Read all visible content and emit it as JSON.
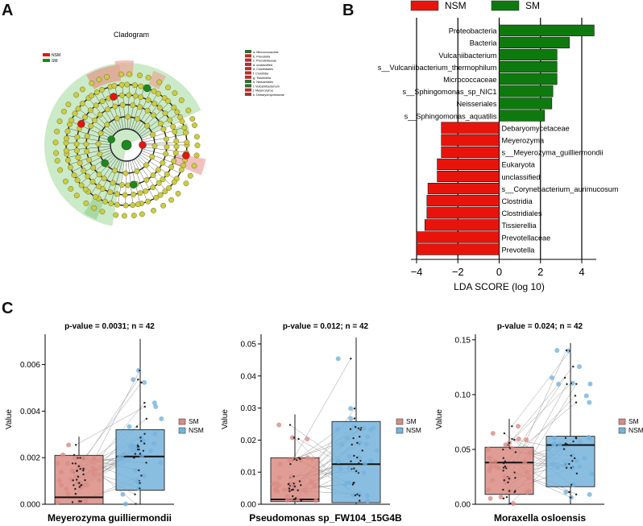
{
  "panel_letters": {
    "a": "A",
    "b": "B",
    "c": "C"
  },
  "cladogram": {
    "title": "Cladogram",
    "legend": [
      {
        "name": "NSM",
        "color": "#e8140c"
      },
      {
        "name": "SM",
        "color": "#1a8a1a"
      }
    ],
    "key_entries": [
      {
        "label": "a: Micrococcaceae",
        "color": "#2f6a2f"
      },
      {
        "label": "b: Prevotella",
        "color": "#b03030"
      },
      {
        "label": "c: Prevotellaceae",
        "color": "#b03030"
      },
      {
        "label": "d: unclassified",
        "color": "#b03030"
      },
      {
        "label": "e: Clostridiales",
        "color": "#b03030"
      },
      {
        "label": "f: Clostridia",
        "color": "#b03030"
      },
      {
        "label": "g: Tissierellia",
        "color": "#b03030"
      },
      {
        "label": "h: Neisseriales",
        "color": "#2f6a2f"
      },
      {
        "label": "i: Vulcaniibacterium",
        "color": "#2f6a2f"
      },
      {
        "label": "j: Meyerozyma",
        "color": "#b03030"
      },
      {
        "label": "k: Debaryomycetaceae",
        "color": "#b03030"
      }
    ]
  },
  "chart_data": [
    {
      "type": "bar",
      "orientation": "horizontal",
      "title": "",
      "xlabel": "LDA SCORE (log 10)",
      "ylabel": "",
      "xlim": [
        -4.5,
        4.8
      ],
      "xticks": [
        -4,
        -2,
        0,
        2,
        4
      ],
      "xtick_labels": [
        "−4",
        "−2",
        "0",
        "2",
        "4"
      ],
      "legend": [
        {
          "name": "NSM",
          "color": "#e8140c"
        },
        {
          "name": "SM",
          "color": "#0e7a0e"
        }
      ],
      "bars": [
        {
          "label": "Proteobacteria",
          "value": 4.6,
          "group": "SM"
        },
        {
          "label": "Bacteria",
          "value": 3.4,
          "group": "SM"
        },
        {
          "label": "Vulcaniibacterium",
          "value": 2.8,
          "group": "SM"
        },
        {
          "label": "s__Vulcaniibacterium_thermophilum",
          "value": 2.8,
          "group": "SM"
        },
        {
          "label": "Micrococcaceae",
          "value": 2.8,
          "group": "SM"
        },
        {
          "label": "s__Sphingomonas_sp_NIC1",
          "value": 2.6,
          "group": "SM"
        },
        {
          "label": "Neisseriales",
          "value": 2.55,
          "group": "SM"
        },
        {
          "label": "s__Sphingomonas_aquatilis",
          "value": 2.2,
          "group": "SM"
        },
        {
          "label": "Debaryomycetaceae",
          "value": -2.8,
          "group": "NSM"
        },
        {
          "label": "Meyerozyma",
          "value": -2.8,
          "group": "NSM"
        },
        {
          "label": "s__Meyerozyma_guilliermondii",
          "value": -2.8,
          "group": "NSM"
        },
        {
          "label": "Eukaryota",
          "value": -3.0,
          "group": "NSM"
        },
        {
          "label": "unclassified",
          "value": -3.0,
          "group": "NSM"
        },
        {
          "label": "s__Corynebacterium_aurimucosum",
          "value": -3.45,
          "group": "NSM"
        },
        {
          "label": "Clostridia",
          "value": -3.5,
          "group": "NSM"
        },
        {
          "label": "Clostridiales",
          "value": -3.5,
          "group": "NSM"
        },
        {
          "label": "Tissierellia",
          "value": -3.6,
          "group": "NSM"
        },
        {
          "label": "Prevotellaceae",
          "value": -4.0,
          "group": "NSM"
        },
        {
          "label": "Prevotella",
          "value": -4.0,
          "group": "NSM"
        }
      ]
    },
    {
      "type": "box",
      "title": "p-value = 0.0031; n = 42",
      "xlabel": "Meyerozyma guilliermondii",
      "ylabel": "Value",
      "ylim": [
        0,
        0.0073
      ],
      "yticks": [
        0,
        0.002,
        0.004,
        0.006
      ],
      "ytick_labels": [
        "0.000",
        "0.002",
        "0.004",
        "0.006"
      ],
      "legend": [
        {
          "name": "SM",
          "color": "#d98c84"
        },
        {
          "name": "NSM",
          "color": "#76b3dc"
        }
      ],
      "boxes": [
        {
          "group": "SM",
          "q1": 0.0,
          "median": 0.0003,
          "q3": 0.0021,
          "whisker_low": 0.0,
          "whisker_high": 0.0029
        },
        {
          "group": "NSM",
          "q1": 0.0006,
          "median": 0.00205,
          "q3": 0.0032,
          "whisker_low": 0.0,
          "whisker_high": 0.0071
        }
      ]
    },
    {
      "type": "box",
      "title": "p-value = 0.012; n = 42",
      "xlabel": "Pseudomonas sp_FW104_15G4B",
      "ylabel": "Value",
      "ylim": [
        0,
        0.053
      ],
      "yticks": [
        0,
        0.01,
        0.02,
        0.03,
        0.04,
        0.05
      ],
      "ytick_labels": [
        "0.00",
        "0.01",
        "0.02",
        "0.03",
        "0.04",
        "0.05"
      ],
      "legend": [
        {
          "name": "SM",
          "color": "#d98c84"
        },
        {
          "name": "NSM",
          "color": "#76b3dc"
        }
      ],
      "boxes": [
        {
          "group": "SM",
          "q1": 0.0008,
          "median": 0.0015,
          "q3": 0.0145,
          "whisker_low": 0.0,
          "whisker_high": 0.028
        },
        {
          "group": "NSM",
          "q1": 0.0005,
          "median": 0.0125,
          "q3": 0.0258,
          "whisker_low": 0.0,
          "whisker_high": 0.052
        }
      ]
    },
    {
      "type": "box",
      "title": "p-value = 0.024; n = 42",
      "xlabel": "Moraxella osloensis",
      "ylabel": "Value",
      "ylim": [
        0,
        0.155
      ],
      "yticks": [
        0,
        0.05,
        0.1,
        0.15
      ],
      "ytick_labels": [
        "0.00",
        "0.05",
        "0.10",
        "0.15"
      ],
      "legend": [
        {
          "name": "SM",
          "color": "#d98c84"
        },
        {
          "name": "NSM",
          "color": "#76b3dc"
        }
      ],
      "boxes": [
        {
          "group": "SM",
          "q1": 0.009,
          "median": 0.038,
          "q3": 0.052,
          "whisker_low": 0.0,
          "whisker_high": 0.078
        },
        {
          "group": "NSM",
          "q1": 0.016,
          "median": 0.054,
          "q3": 0.062,
          "whisker_low": 0.0,
          "whisker_high": 0.147
        }
      ]
    }
  ]
}
